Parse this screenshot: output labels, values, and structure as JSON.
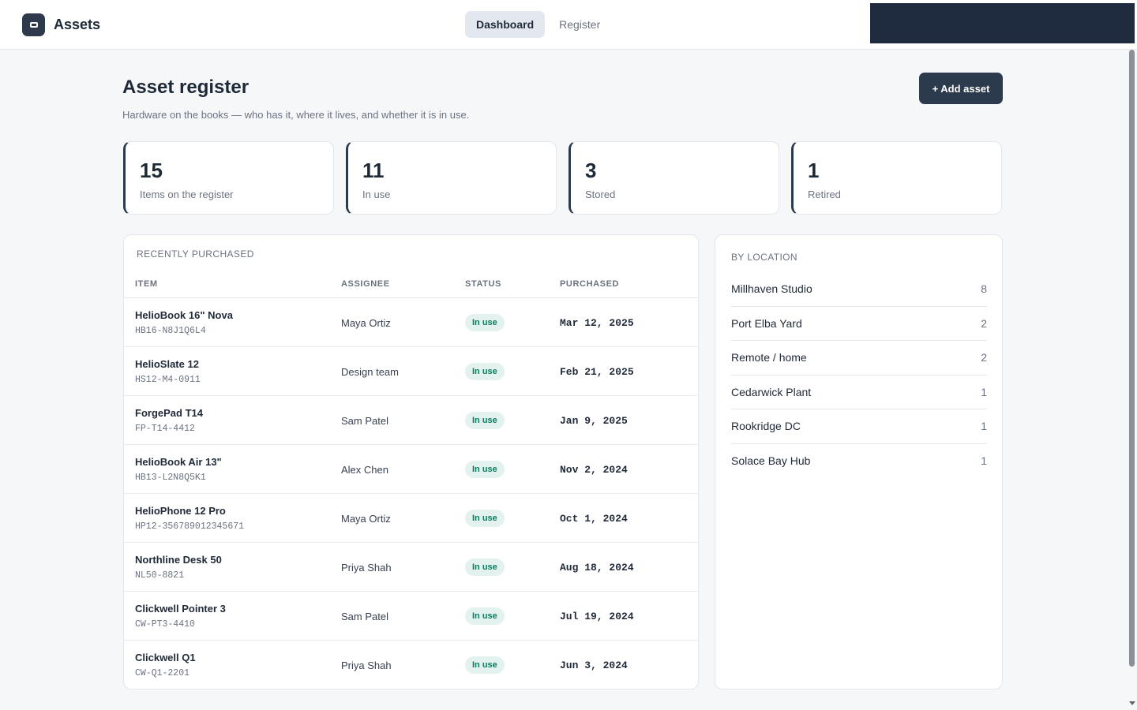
{
  "app": {
    "name": "Assets",
    "icon": "box-icon"
  },
  "nav": {
    "tabs": [
      {
        "label": "Dashboard",
        "active": true
      },
      {
        "label": "Register",
        "active": false
      }
    ]
  },
  "header": {
    "title": "Asset register",
    "subtitle": "Hardware on the books — who has it, where it lives, and whether it is in use.",
    "add_label": "+ Add asset"
  },
  "stats": [
    {
      "value": "15",
      "label": "Items on the register"
    },
    {
      "value": "11",
      "label": "In use"
    },
    {
      "value": "3",
      "label": "Stored"
    },
    {
      "value": "1",
      "label": "Retired"
    }
  ],
  "recent": {
    "title": "RECENTLY PURCHASED",
    "columns": [
      "ITEM",
      "ASSIGNEE",
      "STATUS",
      "PURCHASED"
    ],
    "rows": [
      {
        "name": "HelioBook 16\" Nova",
        "sku": "HB16-N8J1Q6L4",
        "assignee": "Maya Ortiz",
        "status": "In use",
        "date": "Mar 12, 2025"
      },
      {
        "name": "HelioSlate 12",
        "sku": "HS12-M4-0911",
        "assignee": "Design team",
        "status": "In use",
        "date": "Feb 21, 2025"
      },
      {
        "name": "ForgePad T14",
        "sku": "FP-T14-4412",
        "assignee": "Sam Patel",
        "status": "In use",
        "date": "Jan 9, 2025"
      },
      {
        "name": "HelioBook Air 13\"",
        "sku": "HB13-L2N8Q5K1",
        "assignee": "Alex Chen",
        "status": "In use",
        "date": "Nov 2, 2024"
      },
      {
        "name": "HelioPhone 12 Pro",
        "sku": "HP12-356789012345671",
        "assignee": "Maya Ortiz",
        "status": "In use",
        "date": "Oct 1, 2024"
      },
      {
        "name": "Northline Desk 50",
        "sku": "NL50-8821",
        "assignee": "Priya Shah",
        "status": "In use",
        "date": "Aug 18, 2024"
      },
      {
        "name": "Clickwell Pointer 3",
        "sku": "CW-PT3-4410",
        "assignee": "Sam Patel",
        "status": "In use",
        "date": "Jul 19, 2024"
      },
      {
        "name": "Clickwell Q1",
        "sku": "CW-Q1-2201",
        "assignee": "Priya Shah",
        "status": "In use",
        "date": "Jun 3, 2024"
      }
    ]
  },
  "locations": {
    "title": "BY LOCATION",
    "items": [
      {
        "name": "Millhaven Studio",
        "count": "8"
      },
      {
        "name": "Port Elba Yard",
        "count": "2"
      },
      {
        "name": "Remote / home",
        "count": "2"
      },
      {
        "name": "Cedarwick Plant",
        "count": "1"
      },
      {
        "name": "Rookridge DC",
        "count": "1"
      },
      {
        "name": "Solace Bay Hub",
        "count": "1"
      }
    ]
  }
}
